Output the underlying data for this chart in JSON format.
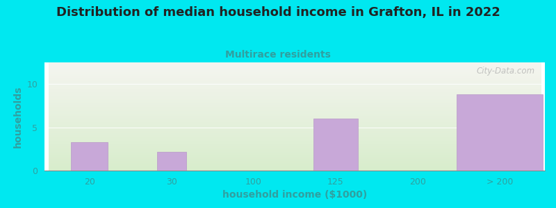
{
  "title": "Distribution of median household income in Grafton, IL in 2022",
  "subtitle": "Multirace residents",
  "xlabel": "household income ($1000)",
  "ylabel": "households",
  "categories": [
    "20",
    "30",
    "100",
    "125",
    "200",
    "> 200"
  ],
  "values": [
    3.3,
    2.2,
    0,
    6.0,
    0,
    8.8
  ],
  "bar_color": "#c8a8d8",
  "bar_edgecolor": "#b898c8",
  "background_color": "#00e8f0",
  "chart_bg_top": "#f5f5f0",
  "chart_bg_bottom": "#d8edcc",
  "title_fontsize": 13,
  "subtitle_fontsize": 10,
  "subtitle_color": "#30a0a0",
  "ylabel_color": "#30a0a0",
  "xlabel_color": "#30a0a0",
  "tick_color": "#30a0a0",
  "ylim": [
    0,
    12.5
  ],
  "yticks": [
    0,
    5,
    10
  ],
  "watermark": "City-Data.com",
  "watermark_color": "#aaaaaa",
  "title_color": "#222222"
}
